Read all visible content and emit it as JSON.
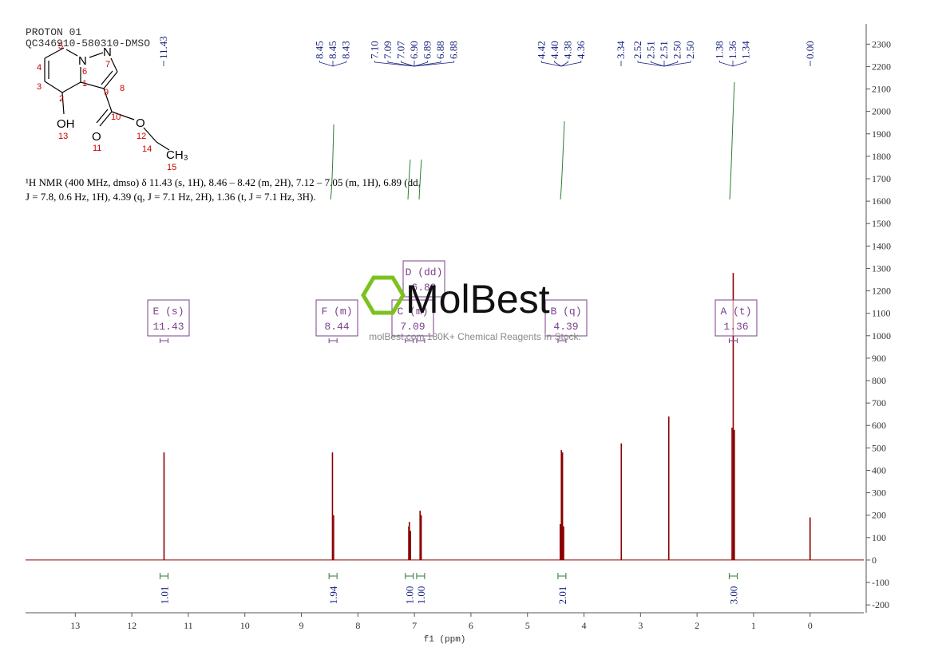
{
  "header": {
    "title": "PROTON 01",
    "subtitle": "QC346910-580310-DMSO"
  },
  "structure": {
    "labels": [
      "N",
      "N",
      "OH",
      "O",
      "O",
      "CH₃"
    ],
    "numbers": [
      1,
      2,
      3,
      4,
      5,
      6,
      7,
      8,
      9,
      10,
      11,
      12,
      13,
      14,
      15
    ]
  },
  "description": [
    "¹H NMR (400 MHz, dmso) δ 11.43 (s, 1H), 8.46 – 8.42 (m, 2H), 7.12 – 7.05 (m, 1H), 6.89 (dd,",
    "J = 7.8, 0.6 Hz, 1H), 4.39 (q, J = 7.1 Hz, 2H), 1.36 (t, J = 7.1 Hz, 3H)."
  ],
  "watermark": {
    "brand": "MolBest",
    "tagline": "molBest.com 180K+ Chemical Reagents In Stock."
  },
  "chart_data": {
    "type": "nmr",
    "x_label": "f1 (ppm)",
    "color": "#8b0000",
    "x": [
      11.43,
      8.45,
      8.43,
      7.1,
      7.09,
      7.07,
      6.9,
      6.88,
      4.42,
      4.4,
      4.38,
      4.36,
      3.34,
      2.5,
      1.38,
      1.36,
      1.34,
      0.0
    ],
    "values": [
      480,
      480,
      200,
      150,
      170,
      130,
      220,
      200,
      160,
      490,
      480,
      150,
      520,
      640,
      590,
      1280,
      580,
      190
    ],
    "xlim": [
      13.88,
      -0.95
    ],
    "ylim": [
      -235,
      2390
    ],
    "xticks": [
      13,
      12,
      11,
      10,
      9,
      8,
      7,
      6,
      5,
      4,
      3,
      2,
      1,
      0
    ],
    "yticks": [
      -200,
      -100,
      0,
      100,
      200,
      300,
      400,
      500,
      600,
      700,
      800,
      900,
      1000,
      1100,
      1200,
      1300,
      1400,
      1500,
      1600,
      1700,
      1800,
      1900,
      2000,
      2100,
      2200,
      2300
    ],
    "peak_labels": [
      [
        "11.43"
      ],
      [
        "8.45",
        "8.45",
        "8.43"
      ],
      [
        "7.10",
        "7.09",
        "7.07",
        "6.90",
        "6.89",
        "6.88",
        "6.88"
      ],
      [
        "4.42",
        "4.40",
        "4.38",
        "4.36"
      ],
      [
        "3.34"
      ],
      [
        "2.52",
        "2.51",
        "2.51",
        "2.50",
        "2.50"
      ],
      [
        "1.38",
        "1.36",
        "1.34"
      ],
      [
        "0.00"
      ]
    ],
    "integrals": {
      "x": [
        11.43,
        8.44,
        7.09,
        6.89,
        4.39,
        1.36
      ],
      "values": [
        1.01,
        1.94,
        1,
        1,
        2.01,
        3
      ],
      "value_labels": [
        "1.01",
        "1.94",
        "1.00",
        "1.00",
        "2.01",
        "3.00"
      ]
    },
    "multiplets": [
      {
        "name": "E (s)",
        "shift": "11.43"
      },
      {
        "name": "F (m)",
        "shift": "8.44"
      },
      {
        "name": "C (m)",
        "shift": "7.09"
      },
      {
        "name": "D (dd)",
        "shift": "6.89"
      },
      {
        "name": "B (q)",
        "shift": "4.39"
      },
      {
        "name": "A (t)",
        "shift": "1.36"
      }
    ]
  }
}
